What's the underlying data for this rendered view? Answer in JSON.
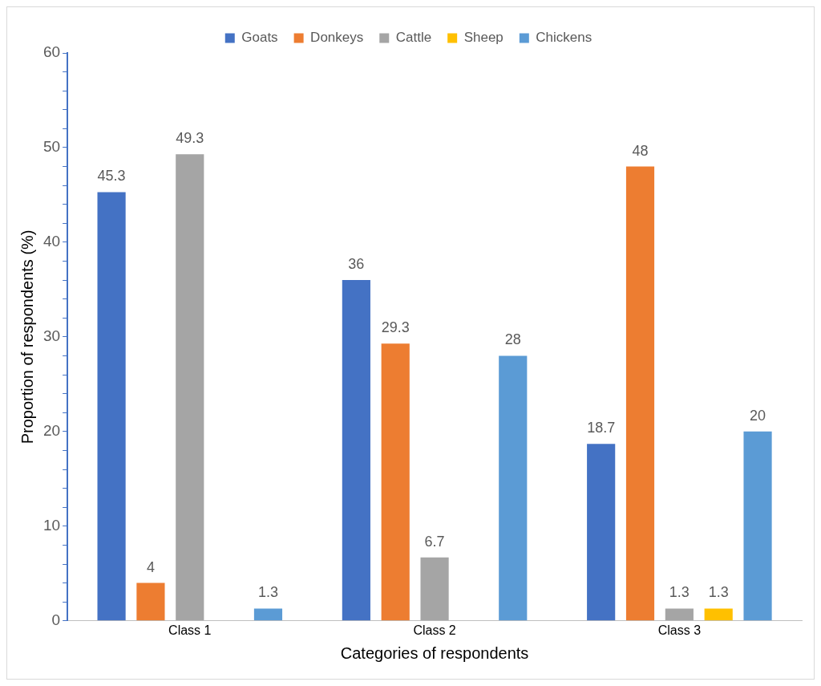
{
  "chart_data": {
    "type": "bar",
    "xlabel": "Categories of respondents",
    "ylabel": "Proportion of respondents (%)",
    "categories": [
      "Class 1",
      "Class 2",
      "Class 3"
    ],
    "series": [
      {
        "name": "Goats",
        "color": "#4472c4",
        "values": [
          45.3,
          36,
          18.7
        ]
      },
      {
        "name": "Donkeys",
        "color": "#ed7d31",
        "values": [
          4,
          29.3,
          48
        ]
      },
      {
        "name": "Cattle",
        "color": "#a5a5a5",
        "values": [
          49.3,
          6.7,
          1.3
        ]
      },
      {
        "name": "Sheep",
        "color": "#ffc000",
        "values": [
          null,
          null,
          1.3
        ]
      },
      {
        "name": "Chickens",
        "color": "#5b9bd5",
        "values": [
          1.3,
          28,
          20
        ]
      }
    ],
    "ylim": [
      0,
      60
    ],
    "yticks": [
      0,
      {
        "value": 2,
        "label": null
      },
      {
        "value": 4,
        "label": null
      },
      {
        "value": 6,
        "label": null
      },
      {
        "value": 8,
        "label": null
      },
      10,
      {
        "value": 12,
        "label": null
      },
      {
        "value": 14,
        "label": null
      },
      {
        "value": 16,
        "label": null
      },
      {
        "value": 18,
        "label": null
      },
      20,
      {
        "value": 22,
        "label": null
      },
      {
        "value": 24,
        "label": null
      },
      {
        "value": 26,
        "label": null
      },
      {
        "value": 28,
        "label": null
      },
      30,
      {
        "value": 32,
        "label": null
      },
      {
        "value": 34,
        "label": null
      },
      {
        "value": 36,
        "label": null
      },
      {
        "value": 38,
        "label": null
      },
      40,
      {
        "value": 42,
        "label": null
      },
      {
        "value": 44,
        "label": null
      },
      {
        "value": 46,
        "label": null
      },
      {
        "value": 48,
        "label": null
      },
      50,
      {
        "value": 52,
        "label": null
      },
      {
        "value": 54,
        "label": null
      },
      {
        "value": 56,
        "label": null
      },
      {
        "value": 58,
        "label": null
      },
      60
    ],
    "grid": false,
    "legend": "top",
    "data_labels": true
  }
}
